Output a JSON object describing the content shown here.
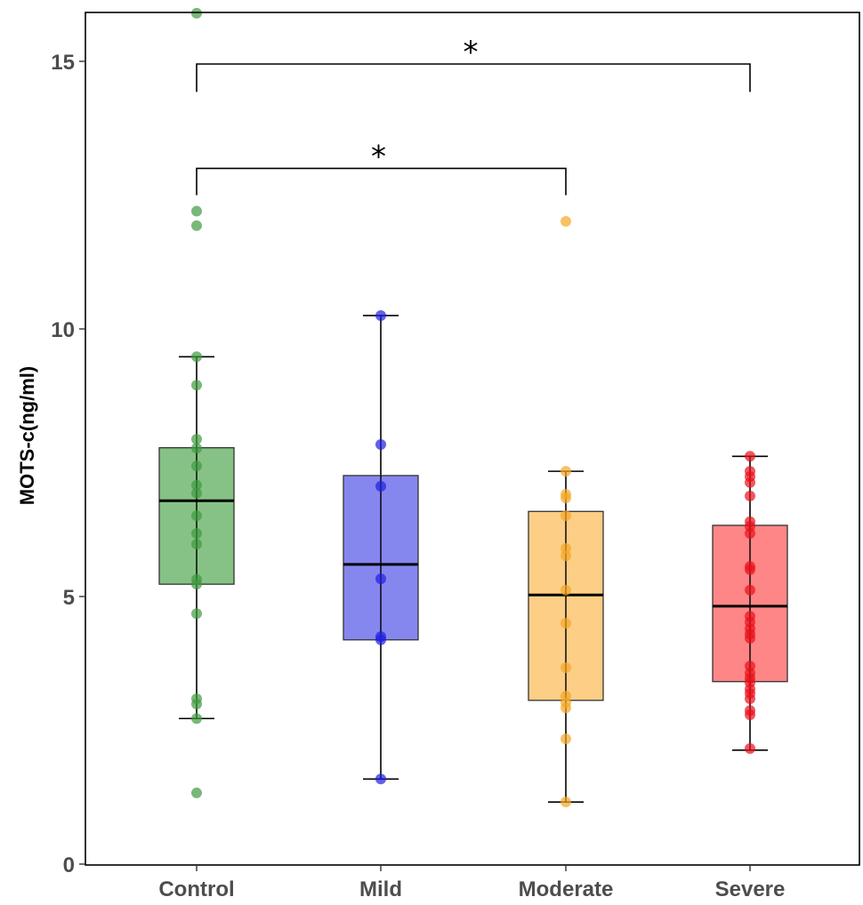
{
  "chart_data": {
    "type": "box",
    "title": "",
    "xlabel": "",
    "ylabel": "MOTS-c(ng/ml)",
    "ylim": [
      0,
      15.9
    ],
    "yticks": [
      0,
      5,
      10,
      15
    ],
    "ytick_labels": [
      "0",
      "5",
      "10",
      "15"
    ],
    "grid": false,
    "legend": "none",
    "categories": [
      "Control",
      "Mild",
      "Moderate",
      "Severe"
    ],
    "series": [
      {
        "name": "Control",
        "color": "#3f9a3f",
        "fill": "#7fbf7f",
        "box": {
          "whisker_low": 2.72,
          "q1": 5.23,
          "median": 6.79,
          "q3": 7.78,
          "whisker_high": 9.48
        },
        "points": [
          15.9,
          12.2,
          11.93,
          9.48,
          8.95,
          7.94,
          7.77,
          7.44,
          7.08,
          6.93,
          6.51,
          6.18,
          5.98,
          5.32,
          5.23,
          4.68,
          3.09,
          2.99,
          2.72,
          1.33
        ]
      },
      {
        "name": "Mild",
        "color": "#2020e0",
        "fill": "#7f7fee",
        "box": {
          "whisker_low": 1.59,
          "q1": 4.19,
          "median": 5.6,
          "q3": 7.26,
          "whisker_high": 10.25
        },
        "points": [
          10.25,
          7.84,
          7.06,
          5.33,
          4.25,
          4.19,
          1.59
        ]
      },
      {
        "name": "Moderate",
        "color": "#f5a623",
        "fill": "#fccb7f",
        "box": {
          "whisker_low": 1.16,
          "q1": 3.06,
          "median": 5.03,
          "q3": 6.59,
          "whisker_high": 7.34
        },
        "points": [
          12.01,
          7.34,
          6.91,
          6.84,
          6.51,
          5.9,
          5.76,
          5.12,
          4.5,
          3.67,
          3.14,
          3.02,
          2.92,
          2.34,
          1.16
        ]
      },
      {
        "name": "Severe",
        "color": "#e8101a",
        "fill": "#ff7f7f",
        "box": {
          "whisker_low": 2.13,
          "q1": 3.41,
          "median": 4.82,
          "q3": 6.33,
          "whisker_high": 7.62
        },
        "points": [
          7.62,
          7.34,
          7.24,
          7.13,
          6.88,
          6.4,
          6.31,
          6.18,
          5.56,
          5.5,
          5.12,
          4.63,
          4.52,
          4.4,
          4.3,
          4.22,
          3.7,
          3.57,
          3.47,
          3.39,
          3.27,
          3.19,
          3.09,
          2.87,
          2.79,
          2.16
        ]
      }
    ],
    "annotations": [
      {
        "type": "significance",
        "from": "Control",
        "to": "Moderate",
        "label": "*",
        "y": 13.0,
        "drop_to": 12.5
      },
      {
        "type": "significance",
        "from": "Control",
        "to": "Severe",
        "label": "*",
        "y": 14.95,
        "drop_to": 14.43
      }
    ]
  }
}
